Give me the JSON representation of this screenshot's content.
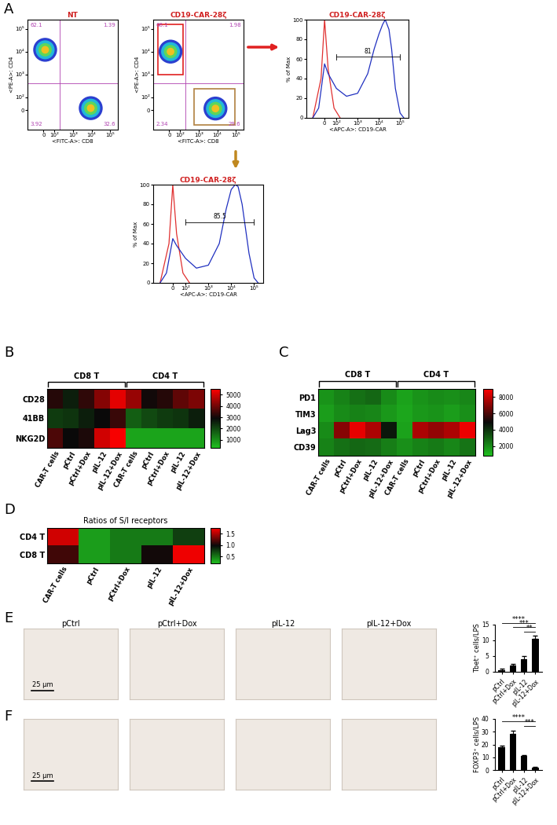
{
  "chart_data": [
    {
      "panel": "A",
      "type": "flow_dot_plot",
      "title": "NT",
      "x_label": "<FITC-A>: CD8",
      "y_label": "<PE-A>: CD4",
      "xlim": [
        -200,
        250000
      ],
      "ylim": [
        -200,
        250000
      ],
      "xticks": [
        0,
        {
          "value": 100,
          "label": "10²"
        },
        {
          "value": 1000,
          "label": "10³"
        },
        {
          "value": 10000,
          "label": "10⁴"
        },
        {
          "value": 100000,
          "label": "10⁵"
        }
      ],
      "yticks": [
        0,
        {
          "value": 100,
          "label": "10²"
        },
        {
          "value": 1000,
          "label": "10³"
        },
        {
          "value": 10000,
          "label": "10⁴"
        },
        {
          "value": 100000,
          "label": "10⁵"
        }
      ],
      "quadrant_gate": {
        "x": 200,
        "y": 400
      },
      "quadrant_values": [
        62.1,
        1.39,
        3.92,
        32.6
      ],
      "populations": [
        {
          "x": 15,
          "y": 12000
        },
        {
          "x": 9000,
          "y": 15
        }
      ]
    },
    {
      "type": "flow_dot_plot",
      "title": "CD19-CAR-28ζ",
      "x_label": "<FITC-A>: CD8",
      "y_label": "<PE-A>: CD4",
      "xlim": [
        -200,
        250000
      ],
      "ylim": [
        -200,
        250000
      ],
      "xticks": [
        0,
        {
          "value": 100,
          "label": "10²"
        },
        {
          "value": 1000,
          "label": "10³"
        },
        {
          "value": 10000,
          "label": "10⁴"
        },
        {
          "value": 100000,
          "label": "10⁵"
        }
      ],
      "yticks": [
        0,
        {
          "value": 100,
          "label": "10²"
        },
        {
          "value": 1000,
          "label": "10³"
        },
        {
          "value": 10000,
          "label": "10⁴"
        },
        {
          "value": 100000,
          "label": "10⁵"
        }
      ],
      "quadrant_gate": {
        "x": 200,
        "y": 400
      },
      "quadrant_values": [
        66.1,
        1.98,
        2.34,
        29.6
      ],
      "populations": [
        {
          "x": 12,
          "y": 10000
        },
        {
          "x": 8000,
          "y": 12
        }
      ]
    },
    {
      "type": "line",
      "title": "CD19-CAR-28ζ",
      "x_label": "<APC-A>: CD19-CAR",
      "y_label": "% of Max",
      "xlim": [
        -200,
        250000
      ],
      "ylim": [
        0,
        100
      ],
      "xticks": [
        0,
        {
          "value": 100,
          "label": "10²"
        },
        {
          "value": 1000,
          "label": "10³"
        },
        {
          "value": 10000,
          "label": "10⁴"
        },
        {
          "value": 100000,
          "label": "10⁵"
        }
      ],
      "yticks": [
        0,
        20,
        40,
        60,
        80,
        100
      ],
      "series": [
        {
          "color": "#e03030",
          "x": [
            -100,
            -30,
            0,
            30,
            80,
            150
          ],
          "values": [
            0,
            40,
            100,
            50,
            10,
            0
          ]
        },
        {
          "color": "#2030c0",
          "x": [
            -100,
            -50,
            0,
            30,
            100,
            300,
            1000,
            3000,
            6000,
            10000,
            15000,
            20000,
            30000,
            40000,
            60000,
            100000,
            150000
          ],
          "values": [
            0,
            10,
            55,
            45,
            30,
            22,
            25,
            45,
            70,
            85,
            95,
            100,
            90,
            70,
            30,
            5,
            0
          ]
        }
      ],
      "gate": {
        "value": 81,
        "from": 100,
        "to": 100000,
        "y": 62
      }
    },
    {
      "type": "line",
      "title": "CD19-CAR-28ζ",
      "x_label": "<APC-A>: CD19-CAR",
      "y_label": "% of Max",
      "xlim": [
        -200,
        250000
      ],
      "ylim": [
        0,
        100
      ],
      "xticks": [
        0,
        {
          "value": 100,
          "label": "10²"
        },
        {
          "value": 1000,
          "label": "10³"
        },
        {
          "value": 10000,
          "label": "10⁴"
        },
        {
          "value": 100000,
          "label": "10⁵"
        }
      ],
      "yticks": [
        0,
        20,
        40,
        60,
        80,
        100
      ],
      "series": [
        {
          "color": "#e03030",
          "x": [
            -100,
            -30,
            0,
            30,
            80,
            150
          ],
          "values": [
            0,
            40,
            100,
            50,
            10,
            0
          ]
        },
        {
          "color": "#2030c0",
          "x": [
            -100,
            -50,
            0,
            30,
            100,
            300,
            1000,
            3000,
            6000,
            10000,
            15000,
            20000,
            30000,
            60000,
            100000,
            150000
          ],
          "values": [
            0,
            10,
            45,
            38,
            25,
            15,
            18,
            40,
            75,
            95,
            100,
            98,
            80,
            30,
            5,
            0
          ]
        }
      ],
      "gate": {
        "value": 85.5,
        "from": 100,
        "to": 100000,
        "y": 62
      }
    },
    {
      "panel": "B",
      "type": "heatmap",
      "rows": [
        "CD28",
        "41BB",
        "NKG2D"
      ],
      "columns": [
        "CAR-T cells",
        "pCtrl",
        "pCtrl+Dox",
        "pIL-12",
        "pIL-12+Dox",
        "CAR-T cells",
        "pCtrl",
        "pCtrl+Dox",
        "pIL-12",
        "pIL-12+Dox"
      ],
      "column_groups": [
        {
          "label": "CD8 T",
          "count": 5
        },
        {
          "label": "CD4 T",
          "count": 5
        }
      ],
      "cells": [
        [
          3200,
          2600,
          3300,
          4200,
          5200,
          4400,
          3000,
          3200,
          3800,
          4100
        ],
        [
          2200,
          2300,
          2600,
          2900,
          3400,
          1700,
          2000,
          2200,
          2300,
          2600
        ],
        [
          3600,
          2900,
          3100,
          5000,
          5400,
          700,
          700,
          700,
          700,
          700
        ]
      ],
      "colorbar": {
        "range": [
          300,
          5500
        ],
        "ticks": [
          1000,
          2000,
          3000,
          4000,
          5000
        ]
      }
    },
    {
      "panel": "C",
      "type": "heatmap",
      "rows": [
        "PD1",
        "TIM3",
        "Lag3",
        "CD39"
      ],
      "columns": [
        "CAR-T cells",
        "pCtrl",
        "pCtrl+Dox",
        "pIL-12",
        "pIL-12+Dox",
        "CAR-T cells",
        "pCtrl",
        "pCtrl+Dox",
        "pIL-12",
        "pIL-12+Dox"
      ],
      "column_groups": [
        {
          "label": "CD8 T",
          "count": 5
        },
        {
          "label": "CD4 T",
          "count": 5
        }
      ],
      "cells": [
        [
          1800,
          2200,
          2600,
          2800,
          2000,
          1500,
          1800,
          2000,
          1900,
          2100
        ],
        [
          1600,
          2000,
          2200,
          2100,
          1700,
          1400,
          1700,
          1800,
          1600,
          1900
        ],
        [
          2000,
          7000,
          8600,
          7600,
          4600,
          1500,
          7600,
          7200,
          7600,
          8700
        ],
        [
          2200,
          2600,
          2800,
          2700,
          2300,
          1900,
          2200,
          2400,
          2100,
          2500
        ]
      ],
      "colorbar": {
        "range": [
          800,
          9000
        ],
        "ticks": [
          2000,
          4000,
          6000,
          8000
        ]
      }
    },
    {
      "panel": "D",
      "type": "heatmap",
      "title": "Ratios of S/I receptors",
      "rows": [
        "CD4 T",
        "CD8 T"
      ],
      "columns": [
        "CAR-T cells",
        "pCtrl",
        "pCtrl+Dox",
        "pIL-12",
        "pIL-12+Dox"
      ],
      "cells": [
        [
          1.6,
          0.35,
          0.5,
          0.5,
          0.75
        ],
        [
          1.15,
          0.35,
          0.5,
          1.0,
          1.7
        ]
      ],
      "colorbar": {
        "range": [
          0.2,
          1.75
        ],
        "ticks": [
          0.5,
          1.0,
          1.5
        ]
      }
    },
    {
      "panel": "E",
      "type": "bar",
      "image_titles": [
        "pCtrl",
        "pCtrl+Dox",
        "pIL-12",
        "pIL-12+Dox"
      ],
      "scale_bar": "25 μm",
      "categories": [
        "pCtrl",
        "pCtrl+Dox",
        "pIL-12",
        "pIL-12+Dox"
      ],
      "values": [
        0.6,
        1.9,
        3.9,
        10.5
      ],
      "errors": [
        0.4,
        0.6,
        1.2,
        1.0
      ],
      "color": "#000000",
      "y_label": "Tbet⁺ cells/LPS",
      "ylim": [
        0,
        15
      ],
      "yticks": [
        0,
        5,
        10,
        15
      ],
      "significance": [
        {
          "from": "pIL-12",
          "to": "pIL-12+Dox",
          "label": "**"
        },
        {
          "from": "pCtrl+Dox",
          "to": "pIL-12+Dox",
          "label": "***"
        },
        {
          "from": "pCtrl",
          "to": "pIL-12+Dox",
          "label": "****"
        }
      ]
    },
    {
      "panel": "F",
      "type": "bar",
      "scale_bar": "25 μm",
      "categories": [
        "pCtrl",
        "pCtrl+Dox",
        "pIL-12",
        "pIL-12+Dox"
      ],
      "values": [
        18,
        28.5,
        11,
        1.8
      ],
      "errors": [
        0.8,
        2.5,
        1.0,
        0.5
      ],
      "color": "#000000",
      "y_label": "FOXP3⁺ cells/LPS",
      "ylim": [
        0,
        40
      ],
      "yticks": [
        0,
        10,
        20,
        30,
        40
      ],
      "significance": [
        {
          "from": "pIL-12",
          "to": "pIL-12+Dox",
          "label": "***"
        },
        {
          "from": "pCtrl",
          "to": "pIL-12+Dox",
          "label": "****"
        }
      ]
    }
  ]
}
